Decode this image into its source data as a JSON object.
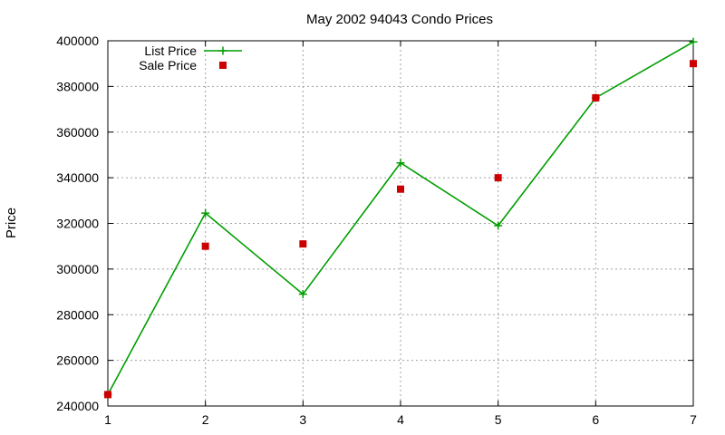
{
  "chart_data": {
    "type": "line",
    "title": "May 2002 94043 Condo Prices",
    "xlabel": "",
    "ylabel": "Price",
    "x": [
      1,
      2,
      3,
      4,
      5,
      6,
      7
    ],
    "xlim": [
      1,
      7
    ],
    "ylim": [
      240000,
      400000
    ],
    "xticks": [
      "1",
      "2",
      "3",
      "4",
      "5",
      "6",
      "7"
    ],
    "yticks": [
      "240000",
      "260000",
      "280000",
      "300000",
      "320000",
      "340000",
      "360000",
      "380000",
      "400000"
    ],
    "grid": true,
    "legend_position": "top-left",
    "series": [
      {
        "name": "List Price",
        "style": "lines+points",
        "marker": "plus",
        "color": "#009e00",
        "values": [
          245000,
          324500,
          289000,
          346500,
          319000,
          375000,
          399500
        ]
      },
      {
        "name": "Sale Price",
        "style": "points",
        "marker": "square",
        "color": "#cc0000",
        "values": [
          245000,
          310000,
          311000,
          335000,
          340000,
          375000,
          390000
        ]
      }
    ]
  }
}
